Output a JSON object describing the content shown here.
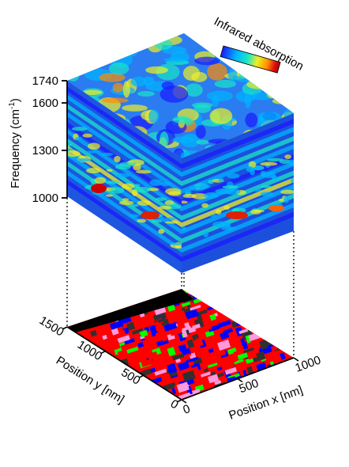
{
  "chart_data": {
    "type": "heatmap",
    "colorbar": {
      "label": "Infrared absorption",
      "colors": [
        "#1a1aff",
        "#00b4ff",
        "#19e6c8",
        "#f0f020",
        "#ff8c00",
        "#e01010",
        "#b00000"
      ]
    },
    "frequency_axis": {
      "label": "Frequency (cm",
      "label_sup": "-1",
      "label_close": ")",
      "ticks": [
        {
          "value": 1740,
          "text": "1740"
        },
        {
          "value": 1600,
          "text": "1600"
        },
        {
          "value": 1300,
          "text": "1300"
        },
        {
          "value": 1000,
          "text": "1000"
        }
      ],
      "range": [
        1000,
        1740
      ]
    },
    "x_axis": {
      "label": "Position x [nm]",
      "ticks": [
        {
          "value": 0,
          "text": "0"
        },
        {
          "value": 500,
          "text": "500"
        },
        {
          "value": 1000,
          "text": "1000"
        }
      ],
      "range": [
        0,
        1000
      ]
    },
    "y_axis": {
      "label": "Position y [nm]",
      "ticks": [
        {
          "value": 0,
          "text": "0"
        },
        {
          "value": 500,
          "text": "500"
        },
        {
          "value": 1000,
          "text": "1000"
        },
        {
          "value": 1500,
          "text": "1500"
        }
      ],
      "range": [
        0,
        1500
      ]
    },
    "map_colors": [
      "#ff0000",
      "#0000ff",
      "#00ff00",
      "#ff99dd",
      "#303030",
      "#000000"
    ]
  }
}
